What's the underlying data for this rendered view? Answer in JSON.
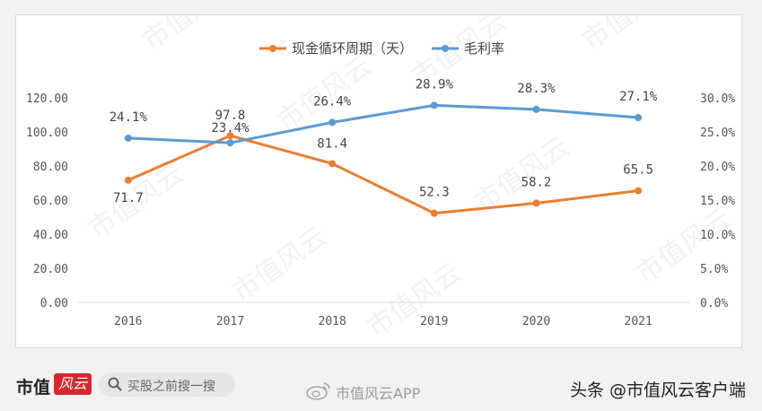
{
  "chart_data": {
    "type": "line",
    "categories": [
      "2016",
      "2017",
      "2018",
      "2019",
      "2020",
      "2021"
    ],
    "series": [
      {
        "name": "现金循环周期（天）",
        "axis": "left",
        "color": "#ed7d31",
        "values": [
          71.7,
          97.8,
          81.4,
          52.3,
          58.2,
          65.5
        ],
        "labels": [
          "71.7",
          "97.8",
          "81.4",
          "52.3",
          "58.2",
          "65.5"
        ]
      },
      {
        "name": "毛利率",
        "axis": "right",
        "color": "#5b9bd5",
        "values": [
          24.1,
          23.4,
          26.4,
          28.9,
          28.3,
          27.1
        ],
        "labels": [
          "24.1%",
          "23.4%",
          "26.4%",
          "28.9%",
          "28.3%",
          "27.1%"
        ]
      }
    ],
    "y_left": {
      "min": 0,
      "max": 120,
      "ticks": [
        "0.00",
        "20.00",
        "40.00",
        "60.00",
        "80.00",
        "100.00",
        "120.00"
      ]
    },
    "y_right": {
      "min": 0,
      "max": 30,
      "ticks": [
        "0.0%",
        "5.0%",
        "10.0%",
        "15.0%",
        "20.0%",
        "25.0%",
        "30.0%"
      ]
    },
    "legend_position": "top",
    "grid": false
  },
  "watermark": "市值风云",
  "footer": {
    "brand": "市值",
    "brand_logo": "风云",
    "search_placeholder": "买股之前搜一搜",
    "search_icon": "search-icon",
    "weibo_icon": "weibo-icon",
    "weibo_account": "市值风云APP",
    "credit": "头条 @市值风云客户端"
  }
}
